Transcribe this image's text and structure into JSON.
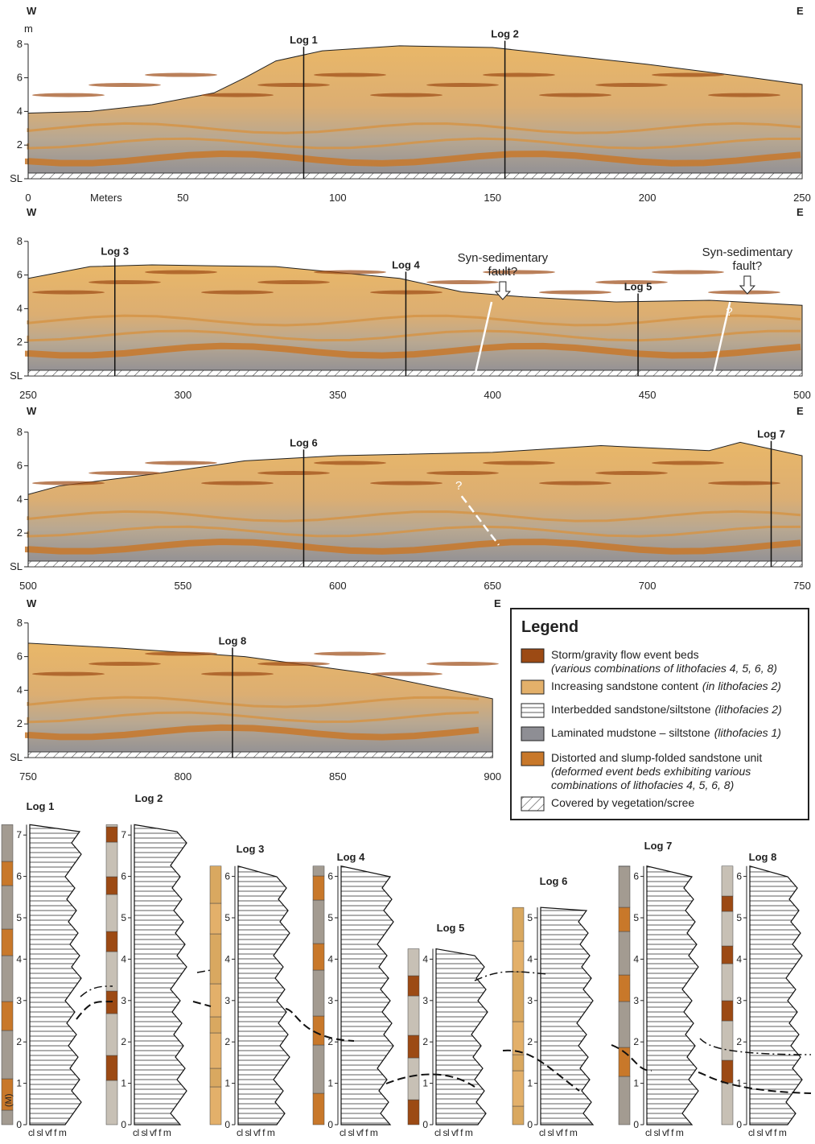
{
  "sections": [
    {
      "west": "W",
      "east": "E",
      "unit": "m",
      "xlabel": "Meters",
      "xlim": [
        0,
        250
      ],
      "ylim": [
        0,
        8
      ],
      "xticks": [
        0,
        50,
        100,
        150,
        200,
        250
      ],
      "yticks": [
        {
          "value": 0,
          "label": "SL"
        },
        2,
        4,
        6,
        8
      ],
      "logs": [
        "Log 1",
        "Log 2"
      ]
    },
    {
      "west": "W",
      "east": "E",
      "xlim": [
        250,
        500
      ],
      "ylim": [
        0,
        8
      ],
      "xticks": [
        250,
        300,
        350,
        400,
        450,
        500
      ],
      "yticks": [
        {
          "value": 0,
          "label": "SL"
        },
        2,
        4,
        6,
        8
      ],
      "logs": [
        "Log 3",
        "Log 4",
        "Log 5"
      ],
      "annotations": [
        [
          "Syn-sedimentary",
          "fault?"
        ],
        [
          "Syn-sedimentary",
          "fault?"
        ]
      ],
      "queries": [
        "?"
      ]
    },
    {
      "west": "W",
      "east": "E",
      "xlim": [
        500,
        750
      ],
      "ylim": [
        0,
        8
      ],
      "xticks": [
        500,
        550,
        600,
        650,
        700,
        750
      ],
      "yticks": [
        {
          "value": 0,
          "label": "SL"
        },
        2,
        4,
        6,
        8
      ],
      "logs": [
        "Log 6",
        "Log 7"
      ],
      "queries": [
        "?"
      ]
    },
    {
      "west": "W",
      "east": "E",
      "xlim": [
        750,
        900
      ],
      "ylim": [
        0,
        8
      ],
      "xticks": [
        750,
        800,
        850,
        900
      ],
      "yticks": [
        {
          "value": 0,
          "label": "SL"
        },
        2,
        4,
        6,
        8
      ],
      "logs": [
        "Log 8"
      ]
    }
  ],
  "legend": {
    "title": "Legend",
    "items": [
      {
        "text": "Storm/gravity flow event beds",
        "note": "(various combinations of lithofacies 4, 5, 6, 8)"
      },
      {
        "text": "Increasing sandstone content",
        "note": "(in lithofacies 2)"
      },
      {
        "text": "Interbedded sandstone/siltstone",
        "note": "(lithofacies 2)"
      },
      {
        "text": "Laminated mudstone – siltstone",
        "note": "(lithofacies 1)"
      },
      {
        "text": "Distorted and slump-folded sandstone unit",
        "note": "(deformed event beds exhibiting various combinations of lithofacies 4, 5, 6, 8)"
      },
      {
        "text": "Covered by vegetation/scree"
      }
    ]
  },
  "columns": {
    "grain_sizes": "cl sl vf f m",
    "scale_note": "(M)",
    "logs": [
      {
        "label": "Log 1",
        "ticks": [
          0,
          1,
          2,
          3,
          4,
          5,
          6,
          7
        ]
      },
      {
        "label": "Log 2",
        "ticks": [
          0,
          1,
          2,
          3,
          4,
          5,
          6,
          7
        ]
      },
      {
        "label": "Log 3",
        "ticks": [
          0,
          1,
          2,
          3,
          4,
          5,
          6
        ]
      },
      {
        "label": "Log 4",
        "ticks": [
          0,
          1,
          2,
          3,
          4,
          5,
          6
        ]
      },
      {
        "label": "Log 5",
        "ticks": [
          0,
          1,
          2,
          3,
          4
        ]
      },
      {
        "label": "Log 6",
        "ticks": [
          0,
          1,
          2,
          3,
          4,
          5
        ]
      },
      {
        "label": "Log 7",
        "ticks": [
          0,
          1,
          2,
          3,
          4,
          5,
          6
        ]
      },
      {
        "label": "Log 8",
        "ticks": [
          0,
          1,
          2,
          3,
          4,
          5,
          6
        ]
      }
    ]
  }
}
